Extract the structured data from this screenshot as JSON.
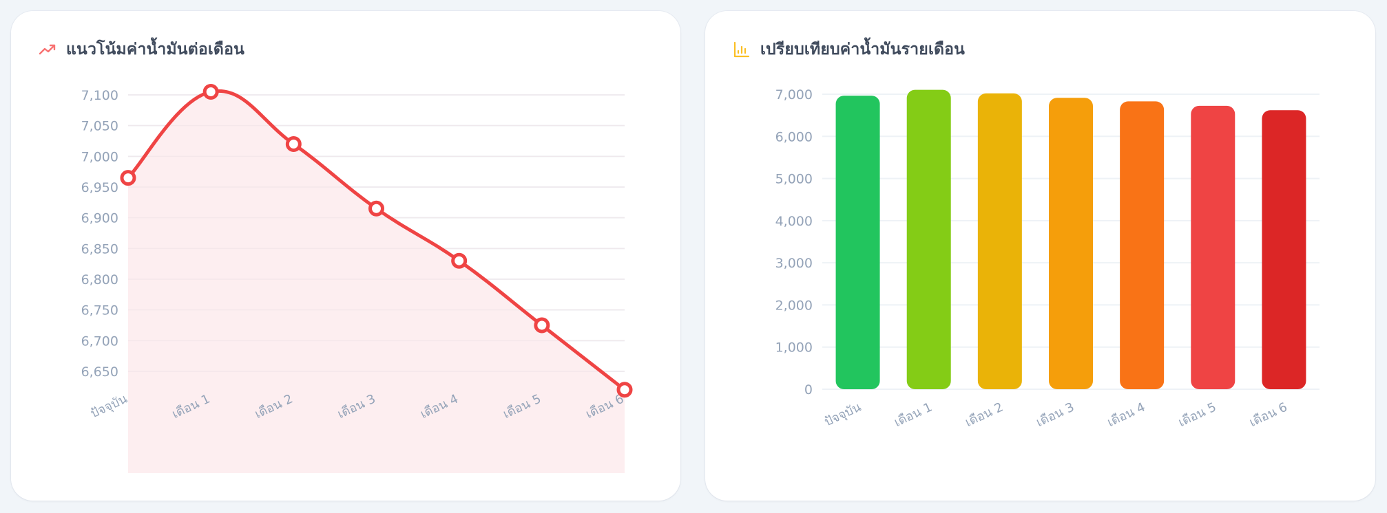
{
  "cards": {
    "line": {
      "title": "แนวโน้มค่าน้ำมันต่อเดือน",
      "icon": "trending-up-icon",
      "icon_color": "#f87171"
    },
    "bar": {
      "title": "เปรียบเทียบค่าน้ำมันรายเดือน",
      "icon": "bar-chart-icon",
      "icon_color": "#fbbf24"
    }
  },
  "chart_data": [
    {
      "type": "area",
      "title": "แนวโน้มค่าน้ำมันต่อเดือน",
      "xlabel": "",
      "ylabel": "",
      "categories": [
        "ปัจจุบัน",
        "เดือน 1",
        "เดือน 2",
        "เดือน 3",
        "เดือน 4",
        "เดือน 5",
        "เดือน 6"
      ],
      "values": [
        6965,
        7105,
        7020,
        6915,
        6830,
        6725,
        6620
      ],
      "yticks": [
        7100,
        7050,
        7000,
        6950,
        6900,
        6850,
        6800,
        6750,
        6700,
        6650
      ],
      "ytick_labels": [
        "7,100",
        "7,050",
        "7,000",
        "6,950",
        "6,900",
        "6,850",
        "6,800",
        "6,750",
        "6,700",
        "6,650"
      ],
      "ylim": [
        6600,
        7110
      ],
      "grid": true,
      "legend": "none",
      "line_color": "#ef4444",
      "fill_color": "#fdecee"
    },
    {
      "type": "bar",
      "title": "เปรียบเทียบค่าน้ำมันรายเดือน",
      "xlabel": "",
      "ylabel": "",
      "categories": [
        "ปัจจุบัน",
        "เดือน 1",
        "เดือน 2",
        "เดือน 3",
        "เดือน 4",
        "เดือน 5",
        "เดือน 6"
      ],
      "values": [
        6965,
        7105,
        7020,
        6915,
        6830,
        6725,
        6620
      ],
      "colors": [
        "#22c55e",
        "#84cc16",
        "#eab308",
        "#f59e0b",
        "#f97316",
        "#ef4444",
        "#dc2626"
      ],
      "yticks": [
        7000,
        6000,
        5000,
        4000,
        3000,
        2000,
        1000,
        0
      ],
      "ytick_labels": [
        "7,000",
        "6,000",
        "5,000",
        "4,000",
        "3,000",
        "2,000",
        "1,000",
        "0"
      ],
      "ylim": [
        0,
        7000
      ],
      "grid": true,
      "legend": "none"
    }
  ]
}
